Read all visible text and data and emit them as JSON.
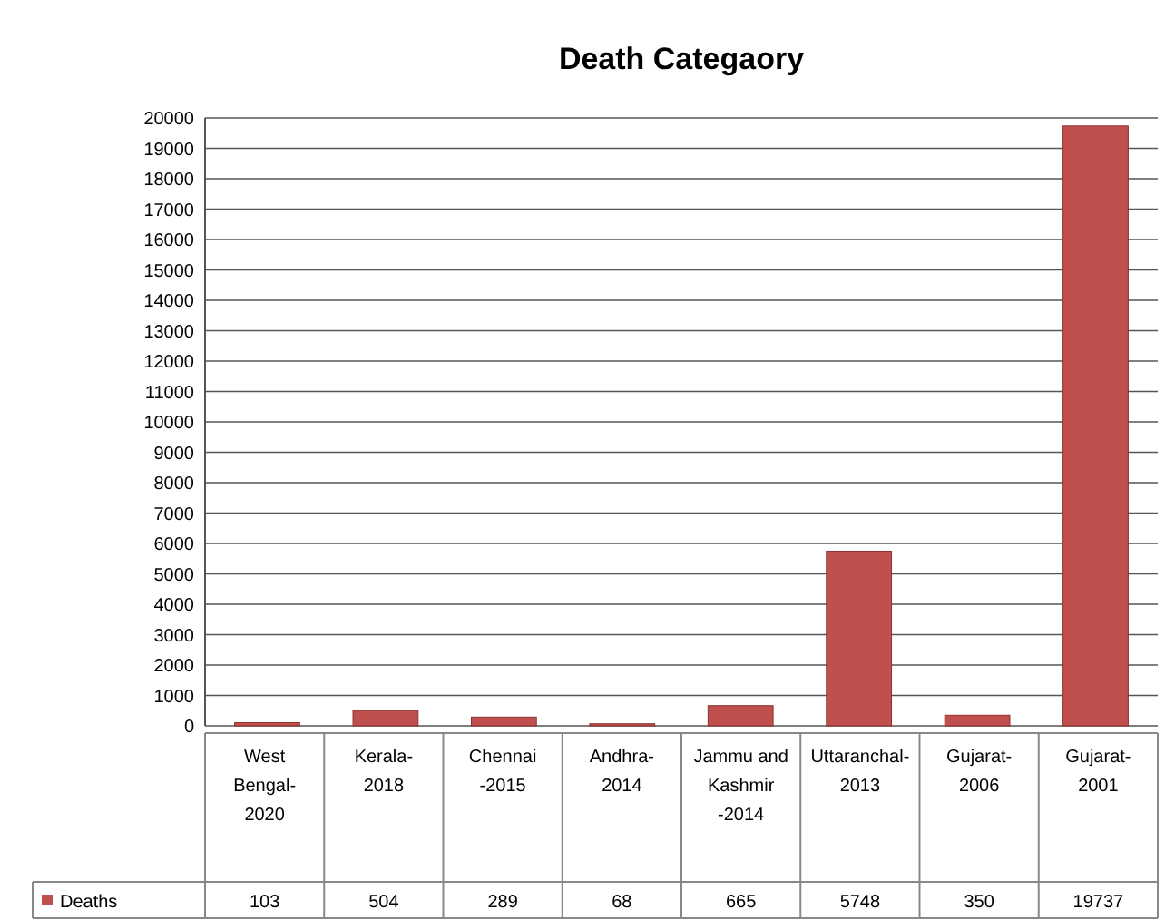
{
  "chart_data": {
    "type": "bar",
    "title": "Death Categaory",
    "categories": [
      "West Bengal-2020",
      "Kerala-2018",
      "Chennai -2015",
      "Andhra-2014",
      "Jammu and Kashmir -2014",
      "Uttaranchal-2013",
      "Gujarat-2006",
      "Gujarat-2001"
    ],
    "series": [
      {
        "name": "Deaths",
        "color": "#c0504d",
        "values": [
          103,
          504,
          289,
          68,
          665,
          5748,
          350,
          19737
        ]
      }
    ],
    "ylim": [
      0,
      20000
    ],
    "yticks": [
      0,
      1000,
      2000,
      3000,
      4000,
      5000,
      6000,
      7000,
      8000,
      9000,
      10000,
      11000,
      12000,
      13000,
      14000,
      15000,
      16000,
      17000,
      18000,
      19000,
      20000
    ],
    "grid": "y",
    "legend": "bottom left",
    "data_labels": true
  }
}
